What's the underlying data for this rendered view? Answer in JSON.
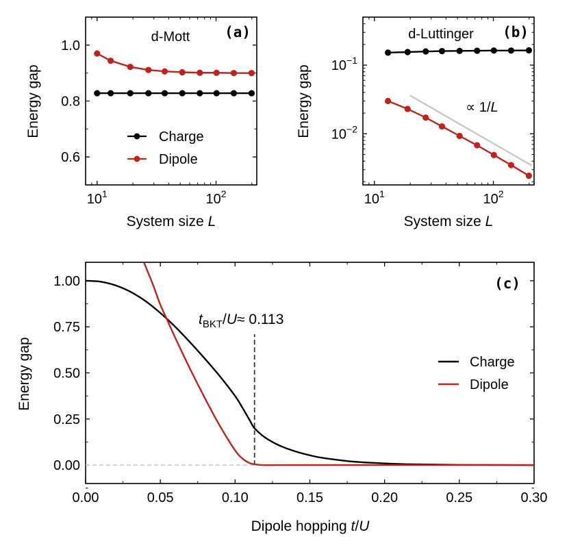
{
  "chart_data": [
    {
      "id": "a",
      "type": "line",
      "panel_label": "(a)",
      "title": "d-Mott",
      "xscale": "log",
      "yscale": "linear",
      "xlim": [
        8,
        220
      ],
      "ylim": [
        0.5,
        1.1
      ],
      "xlabel": "System size L",
      "ylabel": "Energy gap",
      "xticks": [
        {
          "value": 10,
          "base": "10",
          "exp": "1"
        },
        {
          "value": 100,
          "base": "10",
          "exp": "2"
        }
      ],
      "yticks": [
        {
          "value": 0.6,
          "label": "0.6"
        },
        {
          "value": 0.8,
          "label": "0.8"
        },
        {
          "value": 1.0,
          "label": "1.0"
        }
      ],
      "legend": {
        "position": "lower-center",
        "entries": [
          "Charge",
          "Dipole"
        ]
      },
      "series": [
        {
          "name": "Charge",
          "color": "#000000",
          "marker": true,
          "x": [
            10,
            13,
            19,
            27,
            37,
            52,
            73,
            101,
            141,
            199
          ],
          "y": [
            0.828,
            0.828,
            0.828,
            0.828,
            0.828,
            0.828,
            0.828,
            0.828,
            0.828,
            0.828
          ]
        },
        {
          "name": "Dipole",
          "color": "#c0221b",
          "marker": true,
          "x": [
            10,
            13,
            19,
            27,
            37,
            52,
            73,
            101,
            141,
            199
          ],
          "y": [
            0.97,
            0.944,
            0.922,
            0.911,
            0.906,
            0.903,
            0.901,
            0.901,
            0.9,
            0.9
          ]
        }
      ]
    },
    {
      "id": "b",
      "type": "line",
      "panel_label": "(b)",
      "title": "d-Luttinger",
      "xscale": "log",
      "yscale": "log",
      "xlim": [
        8,
        220
      ],
      "ylim": [
        0.0018,
        0.5
      ],
      "xlabel": "System size L",
      "ylabel": "Energy gap",
      "xticks": [
        {
          "value": 10,
          "base": "10",
          "exp": "1"
        },
        {
          "value": 100,
          "base": "10",
          "exp": "2"
        }
      ],
      "yticks": [
        {
          "value": 0.01,
          "base": "10",
          "exp": "−2"
        },
        {
          "value": 0.1,
          "base": "10",
          "exp": "−1"
        }
      ],
      "annotation": {
        "text_prefix": "∝ 1/",
        "text_var": "L"
      },
      "series": [
        {
          "name": "Charge",
          "color": "#000000",
          "marker": true,
          "x": [
            13,
            19,
            27,
            37,
            52,
            73,
            101,
            141,
            199
          ],
          "y": [
            0.152,
            0.155,
            0.158,
            0.16,
            0.161,
            0.162,
            0.163,
            0.163,
            0.164
          ]
        },
        {
          "name": "Dipole",
          "color": "#c0221b",
          "marker": true,
          "x": [
            13,
            19,
            27,
            37,
            52,
            73,
            101,
            141,
            199
          ],
          "y": [
            0.03,
            0.023,
            0.0172,
            0.0128,
            0.0093,
            0.0068,
            0.0049,
            0.0035,
            0.00245
          ]
        },
        {
          "name": "1/L guide",
          "color": "#c8c8c8",
          "marker": false,
          "x": [
            20,
            210
          ],
          "y": [
            0.036,
            0.00345
          ]
        }
      ]
    },
    {
      "id": "c",
      "type": "line",
      "panel_label": "(c)",
      "xscale": "linear",
      "yscale": "linear",
      "xlim": [
        0.0,
        0.3
      ],
      "ylim": [
        -0.1,
        1.1
      ],
      "xlabel": "Dipole hopping t/U",
      "ylabel": "Energy gap",
      "xticks": [
        {
          "value": 0.0,
          "label": "0.00"
        },
        {
          "value": 0.05,
          "label": "0.05"
        },
        {
          "value": 0.1,
          "label": "0.10"
        },
        {
          "value": 0.15,
          "label": "0.15"
        },
        {
          "value": 0.2,
          "label": "0.20"
        },
        {
          "value": 0.25,
          "label": "0.25"
        },
        {
          "value": 0.3,
          "label": "0.30"
        }
      ],
      "yticks": [
        {
          "value": 0.0,
          "label": "0.00"
        },
        {
          "value": 0.25,
          "label": "0.25"
        },
        {
          "value": 0.5,
          "label": "0.50"
        },
        {
          "value": 0.75,
          "label": "0.75"
        },
        {
          "value": 1.0,
          "label": "1.00"
        }
      ],
      "legend": {
        "position": "right",
        "entries": [
          "Charge",
          "Dipole"
        ]
      },
      "vline": {
        "x": 0.113,
        "y_top": 0.71,
        "label_t": "t",
        "label_sub": "BKT",
        "label_rest": "/",
        "label_u": "U",
        "label_value": "≈ 0.113"
      },
      "zero_line": {
        "y": 0.0,
        "x_end": 0.113
      },
      "series": [
        {
          "name": "Charge",
          "color": "#000000",
          "x": [
            0.0,
            0.01,
            0.02,
            0.03,
            0.04,
            0.05,
            0.06,
            0.07,
            0.08,
            0.09,
            0.1,
            0.105,
            0.11,
            0.113,
            0.12,
            0.13,
            0.14,
            0.15,
            0.16,
            0.18,
            0.2,
            0.22,
            0.25,
            0.3
          ],
          "y": [
            1.0,
            0.995,
            0.975,
            0.94,
            0.89,
            0.825,
            0.75,
            0.665,
            0.575,
            0.48,
            0.375,
            0.31,
            0.24,
            0.2,
            0.15,
            0.105,
            0.075,
            0.053,
            0.037,
            0.018,
            0.009,
            0.004,
            0.001,
            0.0
          ]
        },
        {
          "name": "Dipole",
          "color": "#c0221b",
          "x": [
            0.039,
            0.045,
            0.05,
            0.055,
            0.06,
            0.07,
            0.08,
            0.09,
            0.1,
            0.105,
            0.11,
            0.115,
            0.12,
            0.13,
            0.2,
            0.3
          ],
          "y": [
            1.1,
            0.98,
            0.87,
            0.78,
            0.69,
            0.52,
            0.36,
            0.21,
            0.08,
            0.035,
            0.01,
            0.002,
            0.0,
            0.0,
            0.0,
            0.0
          ]
        }
      ]
    }
  ]
}
